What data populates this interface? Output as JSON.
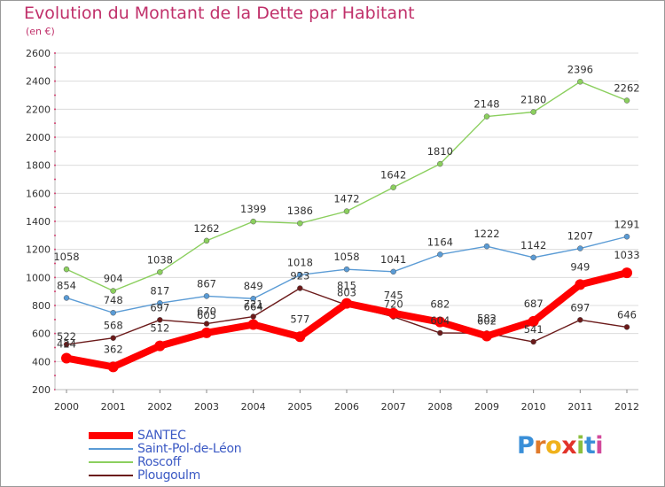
{
  "page": {
    "title": "Evolution du Montant de la Dette par Habitant",
    "subtitle": "(en €)",
    "logo_text": "Proxiti",
    "colors": {
      "title": "#c0306a",
      "grid": "#d9d9d9",
      "background": "#ffffff"
    }
  },
  "chart_data": {
    "type": "line",
    "title": "Evolution du Montant de la Dette par Habitant",
    "subtitle": "(en €)",
    "x": [
      "2000",
      "2001",
      "2002",
      "2003",
      "2004",
      "2005",
      "2006",
      "2007",
      "2008",
      "2009",
      "2010",
      "2011",
      "2012"
    ],
    "ylim": [
      200,
      2600
    ],
    "yticks": [
      200,
      400,
      600,
      800,
      1000,
      1200,
      1400,
      1600,
      1800,
      2000,
      2200,
      2400,
      2600
    ],
    "grid": true,
    "legend_position": "bottom-left",
    "series": [
      {
        "name": "SANTEC",
        "color": "#ff0000",
        "emphasis": true,
        "values": [
          424,
          362,
          512,
          605,
          664,
          577,
          815,
          745,
          682,
          582,
          687,
          949,
          1033
        ]
      },
      {
        "name": "Saint-Pol-de-Léon",
        "color": "#5a9bd5",
        "emphasis": false,
        "values": [
          854,
          748,
          817,
          867,
          849,
          1018,
          1058,
          1041,
          1164,
          1222,
          1142,
          1207,
          1291
        ]
      },
      {
        "name": "Roscoff",
        "color": "#8bcf5e",
        "emphasis": false,
        "values": [
          1058,
          904,
          1038,
          1262,
          1399,
          1386,
          1472,
          1642,
          1810,
          2148,
          2180,
          2396,
          2262
        ]
      },
      {
        "name": "Plougoulm",
        "color": "#6b1a1a",
        "emphasis": false,
        "values": [
          522,
          568,
          697,
          670,
          721,
          923,
          803,
          720,
          604,
          602,
          541,
          697,
          646
        ]
      }
    ]
  }
}
